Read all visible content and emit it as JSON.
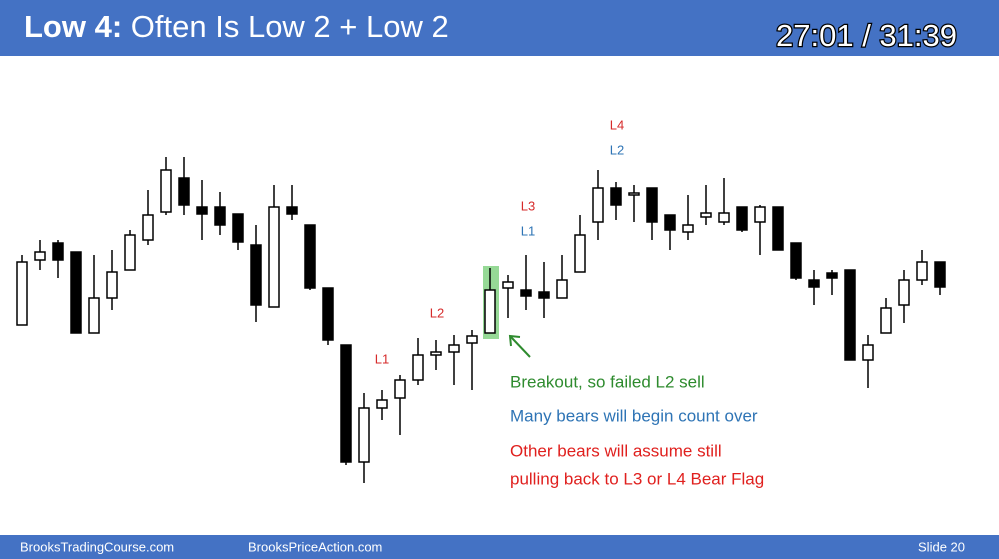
{
  "header": {
    "title_bold": "Low 4:",
    "title_rest": "Often Is Low 2 + Low 2",
    "timer": "27:01 / 31:39"
  },
  "footer": {
    "left": "BrooksTradingCourse.com",
    "middle": "BrooksPriceAction.com",
    "slide": "Slide  20"
  },
  "chart_data": {
    "type": "candlestick",
    "ylim": [
      0,
      350
    ],
    "up_color": "#ffffff",
    "down_color": "#000000",
    "edge_color": "#000000",
    "open": [
      160,
      225,
      242,
      233,
      152,
      187,
      215,
      245,
      273,
      307,
      278,
      278,
      271,
      240,
      178,
      278,
      260,
      197,
      140,
      23,
      77,
      87,
      105,
      130,
      133,
      142,
      152,
      197,
      195,
      193,
      187,
      213,
      263,
      297,
      290,
      297,
      270,
      253,
      268,
      263,
      278,
      263,
      278,
      242,
      205,
      212,
      215,
      125,
      152,
      180,
      205,
      223
    ],
    "high": [
      230,
      245,
      245,
      233,
      230,
      235,
      255,
      295,
      328,
      328,
      305,
      293,
      271,
      260,
      300,
      300,
      260,
      197,
      140,
      92,
      95,
      110,
      147,
      145,
      150,
      155,
      217,
      210,
      230,
      223,
      230,
      270,
      315,
      303,
      300,
      297,
      270,
      290,
      300,
      307,
      278,
      280,
      278,
      242,
      215,
      215,
      215,
      150,
      187,
      215,
      235,
      223
    ],
    "low": [
      160,
      215,
      207,
      152,
      152,
      175,
      215,
      240,
      270,
      270,
      245,
      250,
      235,
      163,
      178,
      265,
      195,
      140,
      20,
      2,
      65,
      50,
      100,
      115,
      100,
      95,
      152,
      167,
      175,
      167,
      187,
      213,
      245,
      265,
      263,
      245,
      235,
      245,
      260,
      260,
      253,
      230,
      235,
      205,
      180,
      190,
      125,
      97,
      152,
      162,
      200,
      190
    ],
    "close": [
      223,
      233,
      225,
      152,
      187,
      213,
      250,
      270,
      315,
      280,
      271,
      260,
      243,
      180,
      278,
      271,
      197,
      145,
      23,
      77,
      85,
      105,
      130,
      133,
      140,
      149,
      195,
      203,
      189,
      187,
      205,
      250,
      297,
      280,
      292,
      263,
      255,
      260,
      272,
      272,
      255,
      278,
      235,
      207,
      198,
      207,
      125,
      140,
      177,
      205,
      223,
      198
    ],
    "annotations": [
      {
        "text": "L1",
        "color": "#d62a2a"
      },
      {
        "text": "L2",
        "color": "#d62a2a"
      },
      {
        "text": "L3",
        "color": "#d62a2a"
      },
      {
        "text": "L1",
        "color": "#2e74b5"
      },
      {
        "text": "L4",
        "color": "#d62a2a"
      },
      {
        "text": "L2",
        "color": "#2e74b5"
      }
    ],
    "notes": [
      {
        "text": "Breakout, so failed L2 sell",
        "color": "#2e8b2e"
      },
      {
        "text": "Many bears will begin count over",
        "color": "#2e74b5"
      },
      {
        "text": "Other bears will assume still",
        "color": "#e0201e"
      },
      {
        "text": "pulling back to L3 or L4 Bear Flag",
        "color": "#e0201e"
      }
    ]
  }
}
